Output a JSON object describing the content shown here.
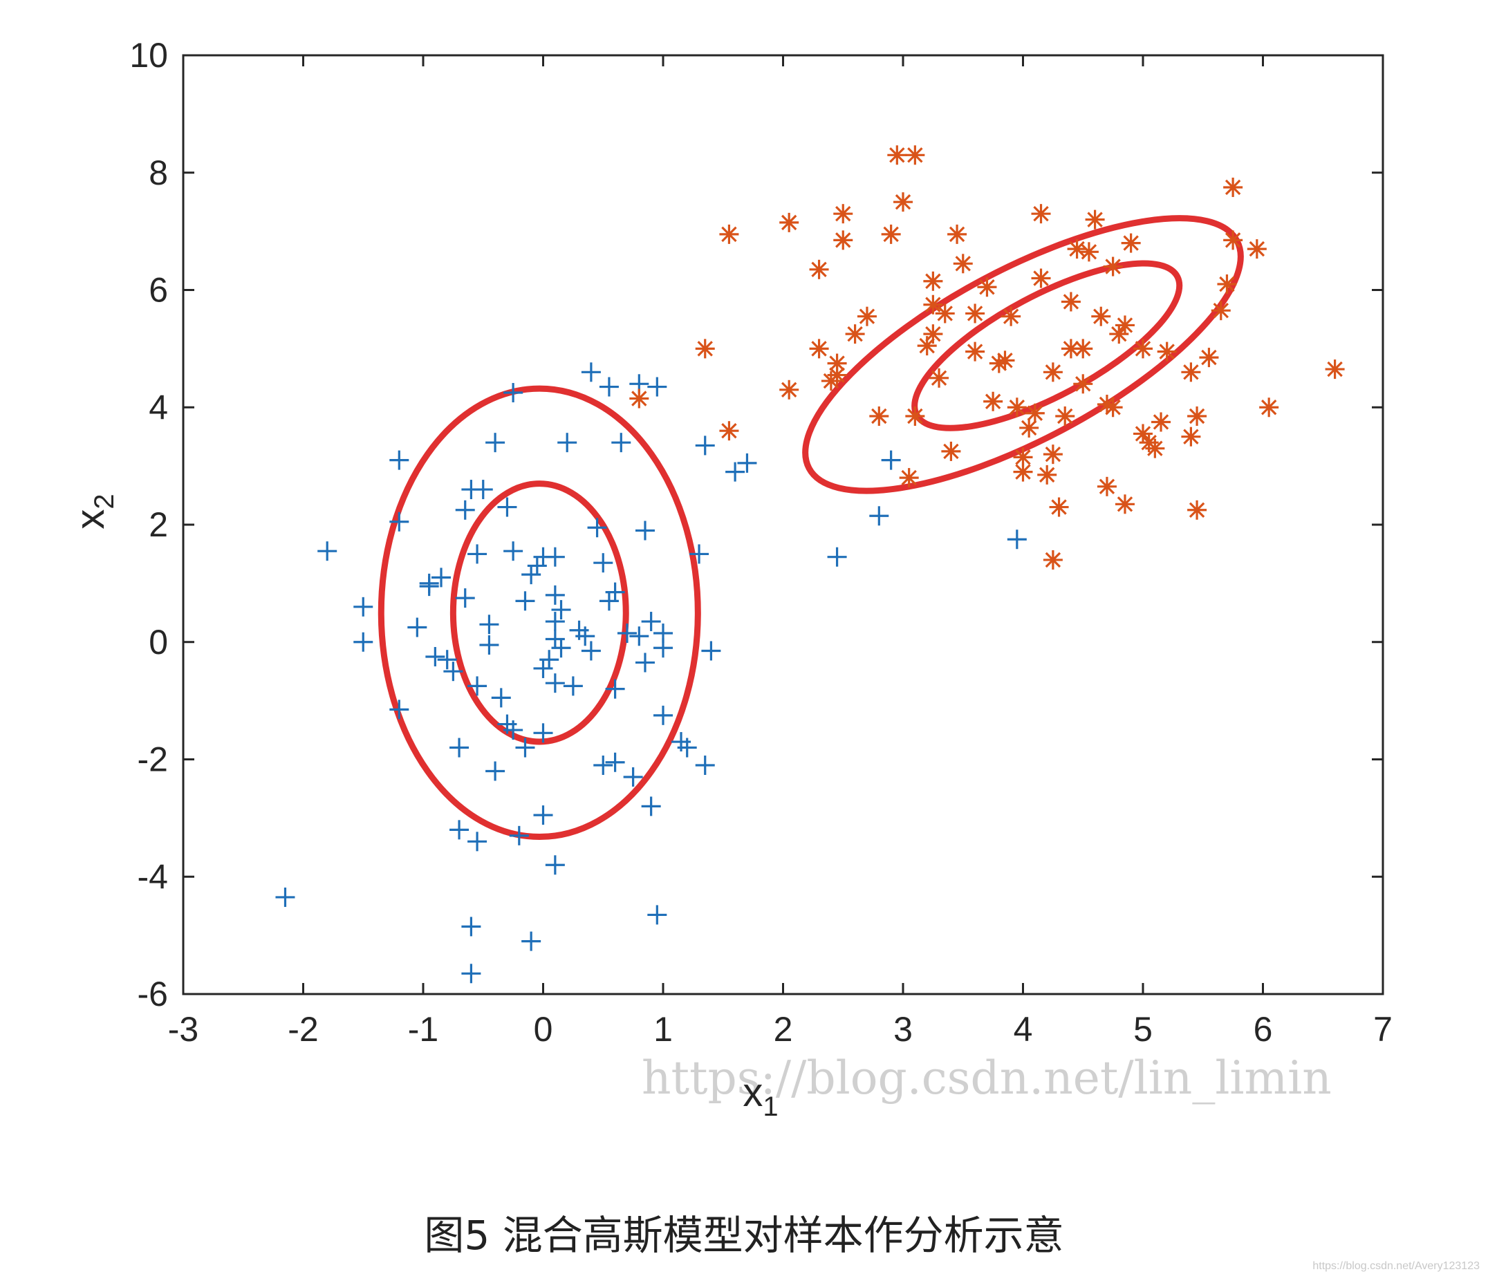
{
  "chart_data": {
    "type": "scatter",
    "xlabel": "x",
    "xlabel_sub": "1",
    "ylabel": "x",
    "ylabel_sub": "2",
    "xlim": [
      -3,
      7
    ],
    "ylim": [
      -6,
      10
    ],
    "xticks": [
      "-3",
      "-2",
      "-1",
      "0",
      "1",
      "2",
      "3",
      "4",
      "5",
      "6",
      "7"
    ],
    "yticks": [
      "-6",
      "-4",
      "-2",
      "0",
      "2",
      "4",
      "6",
      "8",
      "10"
    ],
    "grid": false,
    "series": [
      {
        "marker": "plus",
        "color": "#1f6fb8",
        "points": [
          [
            -2.15,
            -4.35
          ],
          [
            -1.8,
            1.55
          ],
          [
            -1.5,
            0.6
          ],
          [
            -1.5,
            0.0
          ],
          [
            -1.2,
            3.1
          ],
          [
            -1.2,
            2.05
          ],
          [
            -1.2,
            -1.15
          ],
          [
            -1.05,
            0.25
          ],
          [
            -0.95,
            1.0
          ],
          [
            -0.95,
            0.95
          ],
          [
            -0.9,
            -0.25
          ],
          [
            -0.85,
            1.1
          ],
          [
            -0.8,
            -0.3
          ],
          [
            -0.75,
            -0.5
          ],
          [
            -0.7,
            -1.8
          ],
          [
            -0.7,
            -3.2
          ],
          [
            -0.65,
            2.25
          ],
          [
            -0.65,
            0.75
          ],
          [
            -0.6,
            2.6
          ],
          [
            -0.6,
            -4.85
          ],
          [
            -0.6,
            -5.65
          ],
          [
            -0.55,
            1.5
          ],
          [
            -0.55,
            -0.75
          ],
          [
            -0.55,
            -3.4
          ],
          [
            -0.5,
            2.6
          ],
          [
            -0.45,
            0.3
          ],
          [
            -0.45,
            -0.05
          ],
          [
            -0.4,
            3.4
          ],
          [
            -0.4,
            -2.2
          ],
          [
            -0.35,
            -0.95
          ],
          [
            -0.3,
            2.3
          ],
          [
            -0.3,
            -1.4
          ],
          [
            -0.25,
            4.25
          ],
          [
            -0.25,
            1.55
          ],
          [
            -0.25,
            -1.5
          ],
          [
            -0.2,
            -3.3
          ],
          [
            -0.15,
            0.7
          ],
          [
            -0.15,
            -1.8
          ],
          [
            -0.1,
            1.15
          ],
          [
            -0.1,
            -5.1
          ],
          [
            -0.05,
            1.3
          ],
          [
            0.0,
            1.45
          ],
          [
            0.0,
            -0.45
          ],
          [
            0.0,
            -1.55
          ],
          [
            0.0,
            -2.95
          ],
          [
            0.05,
            -0.3
          ],
          [
            0.1,
            1.45
          ],
          [
            0.1,
            0.8
          ],
          [
            0.1,
            0.35
          ],
          [
            0.1,
            0.05
          ],
          [
            0.1,
            -0.7
          ],
          [
            0.1,
            -3.8
          ],
          [
            0.15,
            0.55
          ],
          [
            0.15,
            -0.1
          ],
          [
            0.2,
            3.4
          ],
          [
            0.25,
            -0.75
          ],
          [
            0.3,
            0.2
          ],
          [
            0.35,
            0.1
          ],
          [
            0.4,
            -0.15
          ],
          [
            0.4,
            4.6
          ],
          [
            0.45,
            1.95
          ],
          [
            0.5,
            1.35
          ],
          [
            0.5,
            -2.1
          ],
          [
            0.55,
            0.7
          ],
          [
            0.55,
            4.35
          ],
          [
            0.6,
            0.85
          ],
          [
            0.6,
            -0.8
          ],
          [
            0.6,
            -2.05
          ],
          [
            0.65,
            3.4
          ],
          [
            0.7,
            0.15
          ],
          [
            0.75,
            -2.3
          ],
          [
            0.8,
            4.4
          ],
          [
            0.8,
            0.1
          ],
          [
            0.85,
            1.9
          ],
          [
            0.85,
            -0.35
          ],
          [
            0.9,
            -2.8
          ],
          [
            0.9,
            0.35
          ],
          [
            0.95,
            4.35
          ],
          [
            0.95,
            -4.65
          ],
          [
            1.0,
            -1.25
          ],
          [
            1.0,
            0.15
          ],
          [
            1.0,
            -0.1
          ],
          [
            1.15,
            -1.7
          ],
          [
            1.2,
            -1.8
          ],
          [
            1.3,
            1.5
          ],
          [
            1.35,
            3.35
          ],
          [
            1.35,
            -2.1
          ],
          [
            1.4,
            -0.15
          ],
          [
            1.6,
            2.9
          ],
          [
            1.7,
            3.05
          ],
          [
            2.45,
            1.45
          ],
          [
            2.8,
            2.15
          ],
          [
            2.9,
            3.1
          ],
          [
            3.95,
            1.75
          ]
        ]
      },
      {
        "marker": "asterisk",
        "color": "#d95319",
        "points": [
          [
            0.8,
            4.15
          ],
          [
            1.35,
            5.0
          ],
          [
            1.55,
            3.6
          ],
          [
            1.55,
            6.95
          ],
          [
            2.05,
            4.3
          ],
          [
            2.05,
            7.15
          ],
          [
            2.3,
            5.0
          ],
          [
            2.3,
            6.35
          ],
          [
            2.4,
            4.45
          ],
          [
            2.45,
            4.55
          ],
          [
            2.45,
            4.75
          ],
          [
            2.5,
            7.3
          ],
          [
            2.5,
            6.85
          ],
          [
            2.6,
            5.25
          ],
          [
            2.7,
            5.55
          ],
          [
            2.8,
            3.85
          ],
          [
            2.9,
            6.95
          ],
          [
            2.95,
            8.3
          ],
          [
            3.0,
            7.5
          ],
          [
            3.05,
            2.8
          ],
          [
            3.1,
            8.3
          ],
          [
            3.1,
            3.85
          ],
          [
            3.2,
            5.05
          ],
          [
            3.25,
            6.15
          ],
          [
            3.25,
            5.75
          ],
          [
            3.25,
            5.25
          ],
          [
            3.3,
            4.5
          ],
          [
            3.35,
            5.6
          ],
          [
            3.4,
            3.25
          ],
          [
            3.45,
            6.95
          ],
          [
            3.5,
            6.45
          ],
          [
            3.6,
            5.6
          ],
          [
            3.6,
            4.95
          ],
          [
            3.7,
            6.05
          ],
          [
            3.75,
            4.1
          ],
          [
            3.8,
            4.75
          ],
          [
            3.85,
            4.8
          ],
          [
            3.9,
            5.55
          ],
          [
            3.95,
            4.0
          ],
          [
            4.0,
            3.15
          ],
          [
            4.0,
            2.9
          ],
          [
            4.05,
            3.65
          ],
          [
            4.1,
            3.9
          ],
          [
            4.15,
            7.3
          ],
          [
            4.15,
            6.2
          ],
          [
            4.2,
            2.85
          ],
          [
            4.25,
            3.2
          ],
          [
            4.25,
            4.6
          ],
          [
            4.25,
            1.4
          ],
          [
            4.3,
            2.3
          ],
          [
            4.35,
            3.85
          ],
          [
            4.4,
            5.0
          ],
          [
            4.4,
            5.8
          ],
          [
            4.45,
            6.7
          ],
          [
            4.5,
            4.4
          ],
          [
            4.5,
            5.0
          ],
          [
            4.55,
            6.65
          ],
          [
            4.6,
            7.2
          ],
          [
            4.65,
            5.55
          ],
          [
            4.7,
            2.65
          ],
          [
            4.7,
            4.05
          ],
          [
            4.75,
            4.0
          ],
          [
            4.75,
            6.4
          ],
          [
            4.8,
            5.25
          ],
          [
            4.85,
            5.4
          ],
          [
            4.85,
            2.35
          ],
          [
            4.9,
            6.8
          ],
          [
            5.0,
            5.0
          ],
          [
            5.0,
            3.55
          ],
          [
            5.05,
            3.4
          ],
          [
            5.1,
            3.3
          ],
          [
            5.15,
            3.75
          ],
          [
            5.2,
            4.95
          ],
          [
            5.4,
            3.5
          ],
          [
            5.4,
            4.6
          ],
          [
            5.45,
            3.85
          ],
          [
            5.45,
            2.25
          ],
          [
            5.55,
            4.85
          ],
          [
            5.65,
            5.65
          ],
          [
            5.7,
            6.1
          ],
          [
            5.75,
            6.85
          ],
          [
            5.75,
            7.75
          ],
          [
            5.95,
            6.7
          ],
          [
            6.05,
            4.0
          ],
          [
            6.6,
            4.65
          ]
        ]
      }
    ],
    "ellipses": [
      {
        "color": "#e03030",
        "center": [
          -0.03,
          0.5
        ],
        "rx": 1.32,
        "ry": 3.82,
        "angle": 0
      },
      {
        "color": "#e03030",
        "center": [
          -0.03,
          0.5
        ],
        "rx": 0.72,
        "ry": 2.2,
        "angle": 0
      },
      {
        "color": "#e03030",
        "center": [
          4.0,
          4.9
        ],
        "rx": 2.02,
        "ry": 1.45,
        "angle": -28
      },
      {
        "color": "#e03030",
        "center": [
          4.2,
          5.05
        ],
        "rx": 1.23,
        "ry": 0.86,
        "angle": -28
      }
    ]
  },
  "watermark": "https://blog.csdn.net/lin_limin",
  "small_watermark": "https://blog.csdn.net/Avery123123",
  "caption": "图5 混合高斯模型对样本作分析示意"
}
